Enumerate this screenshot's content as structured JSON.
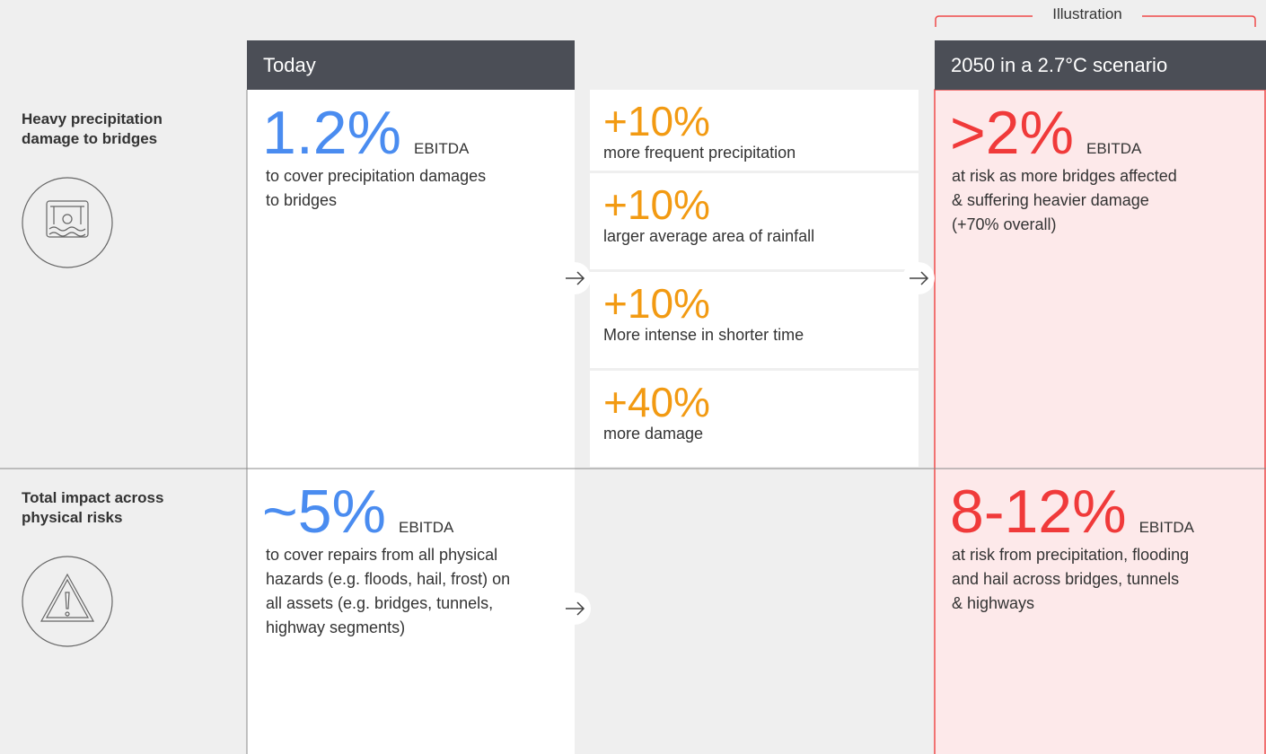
{
  "illustration_label": "Illustration",
  "headers": {
    "today": "Today",
    "future": "2050 in a 2.7°C scenario"
  },
  "rows": [
    {
      "label": [
        "Heavy precipitation",
        "damage to bridges"
      ],
      "today": {
        "value": "1.2%",
        "unit": "EBITDA",
        "desc": [
          "to cover precipitation damages",
          "to bridges"
        ]
      },
      "drivers": [
        {
          "value": "+10%",
          "desc": "more frequent precipitation"
        },
        {
          "value": "+10%",
          "desc": "larger average area of rainfall"
        },
        {
          "value": "+10%",
          "desc": "More intense in shorter time"
        },
        {
          "value": "+40%",
          "desc": "more damage"
        }
      ],
      "future": {
        "value": ">2%",
        "unit": "EBITDA",
        "desc": [
          "at risk as more bridges affected",
          "& suffering heavier damage",
          "(+70% overall)"
        ]
      }
    },
    {
      "label": [
        "Total impact across",
        "physical risks"
      ],
      "today": {
        "value": "~5%",
        "unit": "EBITDA",
        "desc": [
          "to cover repairs from all physical",
          "hazards (e.g. floods, hail, frost) on",
          "all assets (e.g. bridges, tunnels,",
          "highway segments)"
        ]
      },
      "drivers": [],
      "future": {
        "value": "8-12%",
        "unit": "EBITDA",
        "desc": [
          "at risk from precipitation, flooding",
          "and hail across bridges, tunnels",
          "& highways"
        ]
      }
    }
  ]
}
